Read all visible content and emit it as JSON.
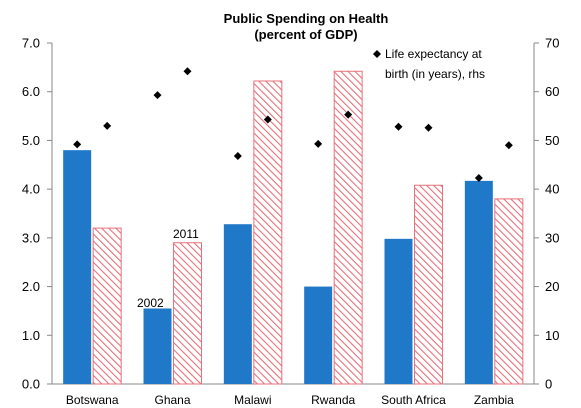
{
  "chart_data": {
    "type": "bar",
    "title": "Public Spending on Health",
    "subtitle": "(percent of GDP)",
    "categories": [
      "Botswana",
      "Ghana",
      "Malawi",
      "Rwanda",
      "South Africa",
      "Zambia"
    ],
    "series": [
      {
        "name": "",
        "pattern": "solid",
        "color": "#1f78c8",
        "values": [
          4.8,
          1.55,
          3.28,
          2.0,
          2.98,
          4.17
        ]
      },
      {
        "name": "",
        "pattern": "hatched",
        "color": "#e8707a",
        "values": [
          3.2,
          2.9,
          6.22,
          6.42,
          4.08,
          3.8
        ]
      }
    ],
    "line_series": {
      "name": "Life expectancy at birth (in years), rhs",
      "axis": "right",
      "marker": "diamond",
      "values_2002": [
        49.2,
        59.3,
        46.8,
        49.3,
        52.8,
        42.3
      ],
      "values_2011": [
        53.0,
        64.2,
        54.3,
        55.3,
        52.6,
        49.0
      ]
    },
    "annotations": [
      "2002",
      "2011"
    ],
    "y_left": {
      "min": 0,
      "max": 7,
      "ticks": [
        "0.0",
        "1.0",
        "2.0",
        "3.0",
        "4.0",
        "5.0",
        "6.0",
        "7.0"
      ]
    },
    "y_right": {
      "min": 0,
      "max": 70,
      "ticks": [
        "0",
        "10",
        "20",
        "30",
        "40",
        "50",
        "60",
        "70"
      ]
    },
    "legend": {
      "position": "top-right",
      "label_line1": "Life expectancy at",
      "label_line2": "birth (in years), rhs"
    },
    "grid": false
  }
}
